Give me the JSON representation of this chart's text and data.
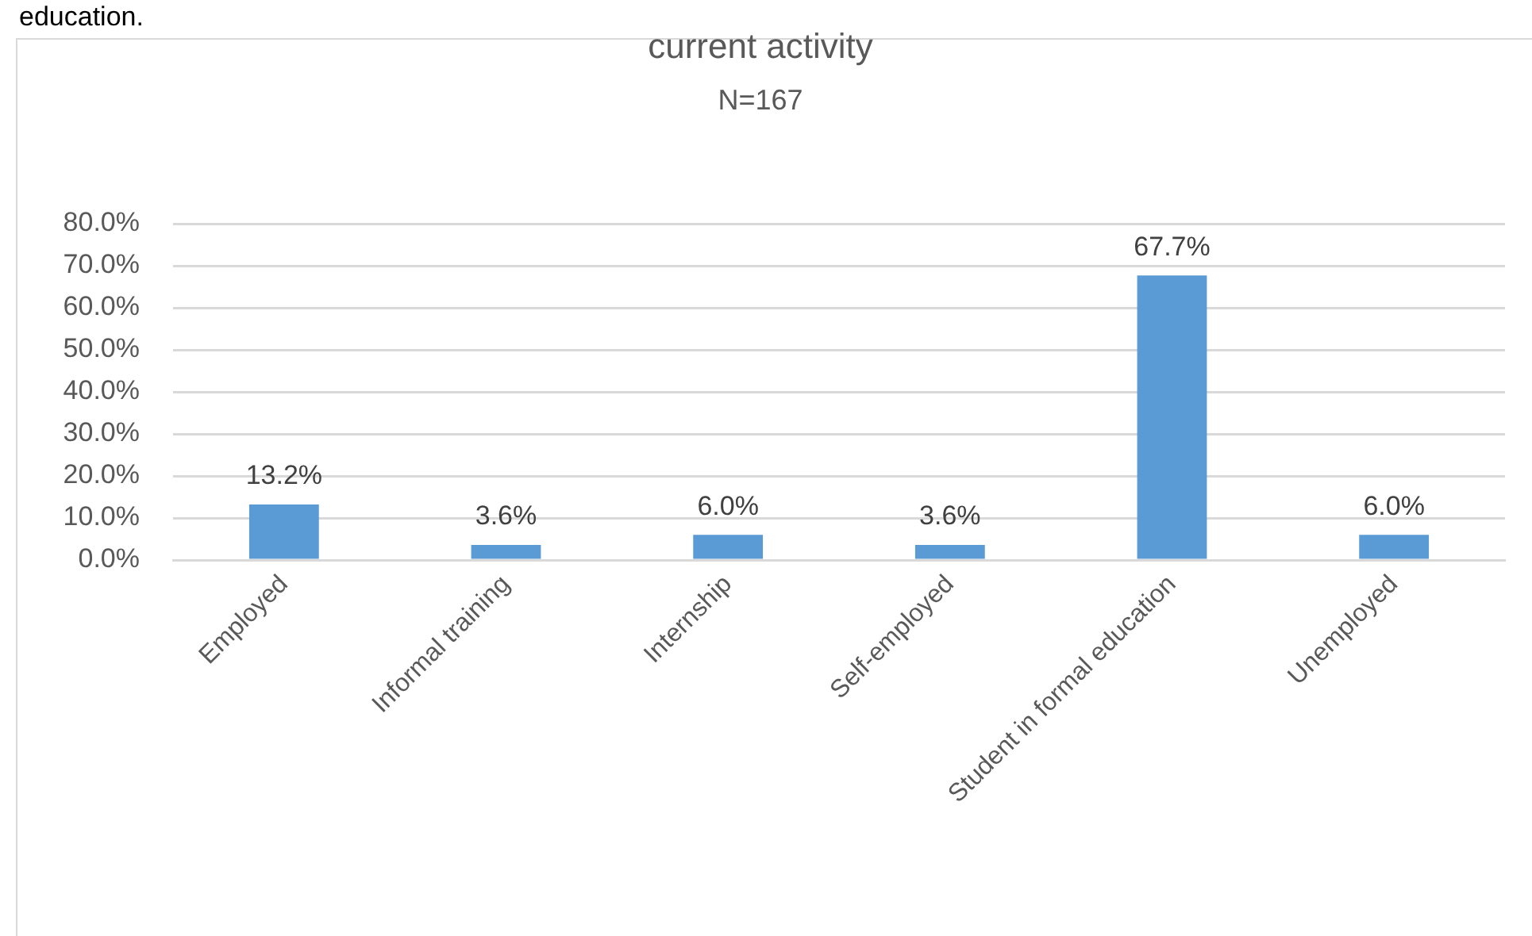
{
  "chart_data": {
    "type": "bar",
    "title": "current activity",
    "subtitle": "N=167",
    "annotations": [
      "education."
    ],
    "categories": [
      "Employed",
      "Informal training",
      "Internship",
      "Self-employed",
      "Student in formal education",
      "Unemployed"
    ],
    "values": [
      13.2,
      3.6,
      6.0,
      3.6,
      67.7,
      6.0
    ],
    "value_labels": [
      "13.2%",
      "3.6%",
      "6.0%",
      "3.6%",
      "67.7%",
      "6.0%"
    ],
    "color": "#5b9bd5",
    "ylim": [
      0,
      80
    ],
    "yticks": [
      {
        "value": 0,
        "label": "0.0%"
      },
      {
        "value": 10,
        "label": "10.0%"
      },
      {
        "value": 20,
        "label": "20.0%"
      },
      {
        "value": 30,
        "label": "30.0%"
      },
      {
        "value": 40,
        "label": "40.0%"
      },
      {
        "value": 50,
        "label": "50.0%"
      },
      {
        "value": 60,
        "label": "60.0%"
      },
      {
        "value": 70,
        "label": "70.0%"
      },
      {
        "value": 80,
        "label": "80.0%"
      }
    ],
    "grid": "y"
  }
}
